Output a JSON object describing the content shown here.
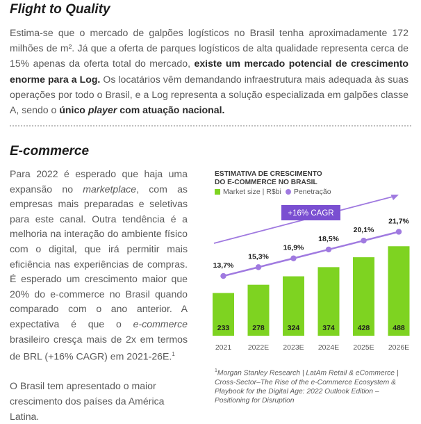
{
  "section1": {
    "title": "Flight to Quality",
    "p_a": "Estima-se que o mercado de galpões logísticos no Brasil tenha aproximadamente 172 milhões de m². Já que a oferta de parques logísticos de alta qualidade representa cerca de 15% apenas da oferta total do mercado, ",
    "p_b": "existe um mercado potencial de crescimento enorme para a Log.",
    "p_c": " Os locatários vêm demandando infraestrutura mais adequada às suas operações por todo o Brasil, e a Log representa a solução especializada em galpões classe A, sendo o ",
    "p_d": "único ",
    "p_e": "player",
    "p_f": " com atuação nacional."
  },
  "section2": {
    "title": "E-commerce",
    "p1_a": "Para 2022 é esperado que haja uma expansão no ",
    "p1_b": "marketplace",
    "p1_c": ", com as empresas mais preparadas e seletivas para este canal. Outra tendência é a melhoria na interação do ambiente físico com o digital, que irá permitir mais eficiência nas experiências de compras. É esperado um crescimento maior que 20% do e-commerce no Brasil quando comparado com o ano anterior. A expectativa é que o ",
    "p1_d": "e-commerce",
    "p1_e": " brasileiro cresça mais de 2x em termos de BRL (+16% CAGR) em 2021-26E.",
    "p1_sup": "1",
    "p2": "O Brasil tem apresentado o maior crescimento dos países da América Latina."
  },
  "chart_title_1": "ESTIMATIVA DE CRESCIMENTO",
  "chart_title_2": "DO E-COMMERCE NO BRASIL",
  "chart_data": {
    "type": "bar",
    "categories": [
      "2021",
      "2022E",
      "2023E",
      "2024E",
      "2025E",
      "2026E"
    ],
    "series": [
      {
        "name": "Market size | R$bi",
        "type": "bar",
        "values": [
          233,
          278,
          324,
          374,
          428,
          488
        ]
      },
      {
        "name": "Penetração",
        "type": "line",
        "values": [
          13.7,
          15.3,
          16.9,
          18.5,
          20.1,
          21.7
        ],
        "labels": [
          "13,7%",
          "15,3%",
          "16,9%",
          "18,5%",
          "20,1%",
          "21,7%"
        ]
      }
    ],
    "annotation": "+16% CAGR",
    "legend": "top-left",
    "colors": {
      "bar": "#7ed321",
      "line": "#a07ae0",
      "annotation_bg": "#7a4fd1"
    }
  },
  "source": {
    "sup": "1",
    "text": "Morgan Stanley Research | LatAm Retail & eCommerce | Cross-Sector–The Rise of the e-Commerce Ecosystem & Playbook for the Digital Age: 2022 Outlook Edition – Positioning for Disruption"
  }
}
